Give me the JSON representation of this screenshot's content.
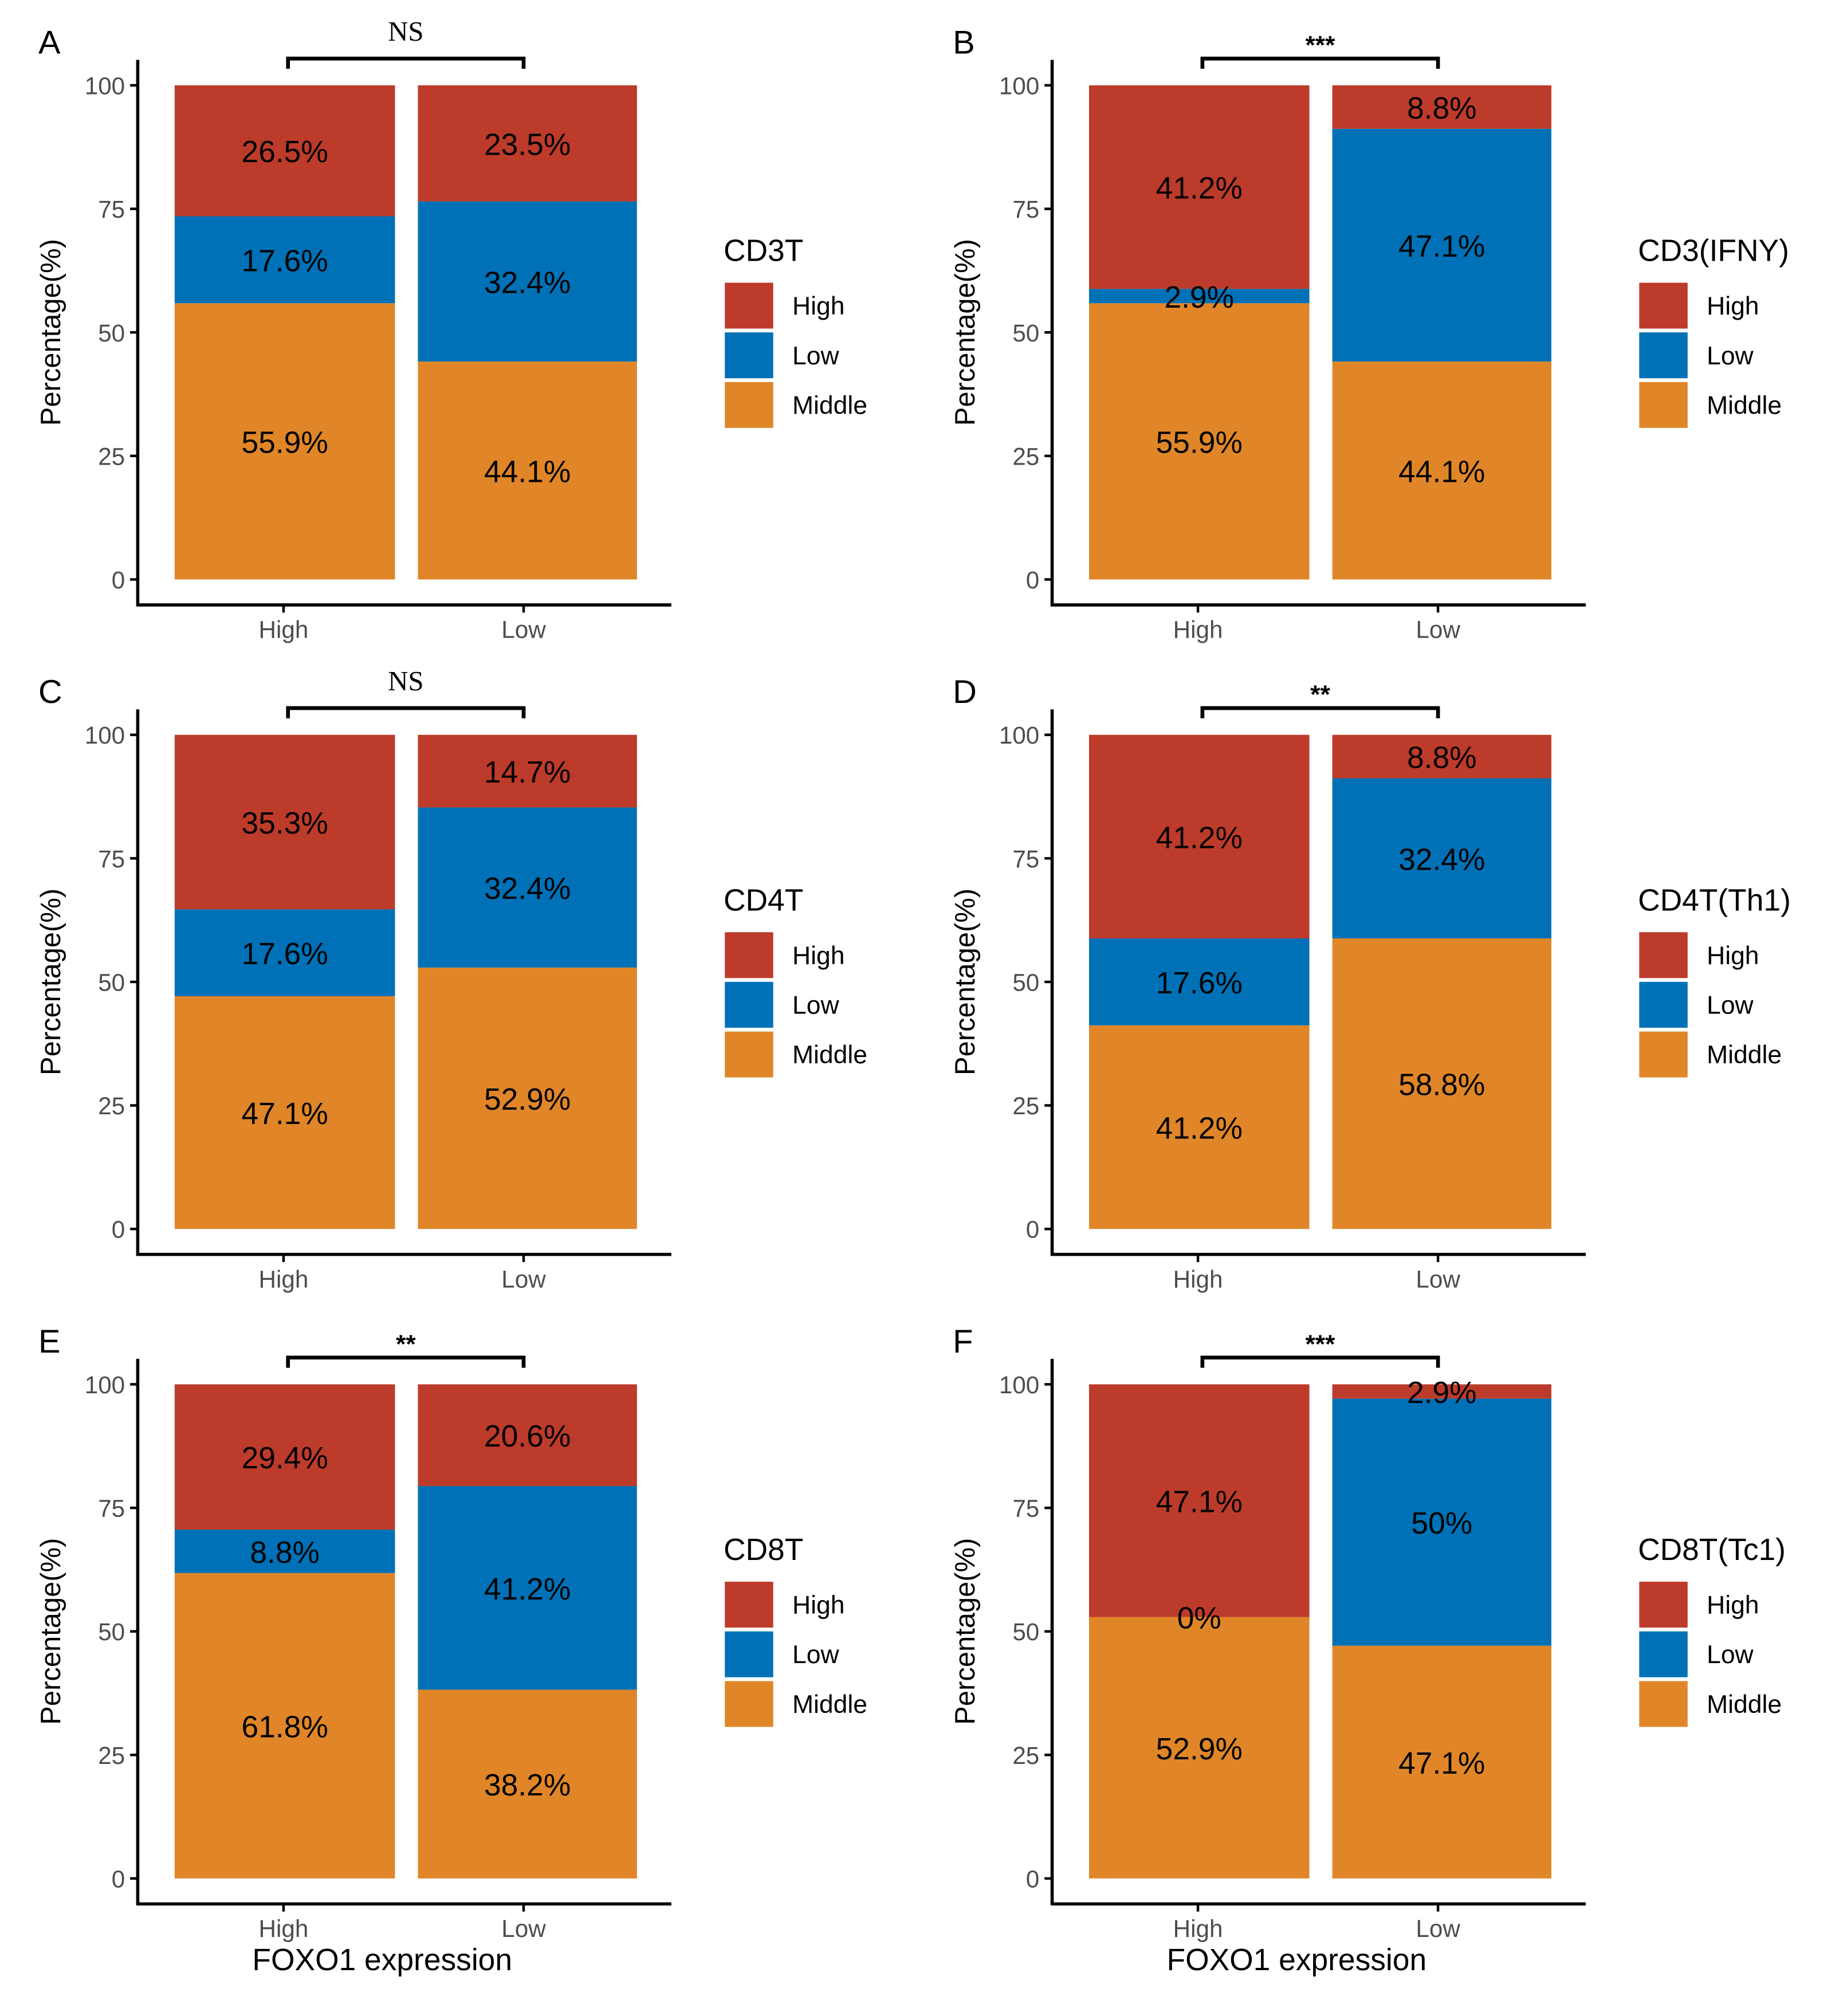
{
  "chart_data": [
    {
      "panel": "A",
      "type": "bar",
      "stacked": true,
      "significance": "NS",
      "legend_title": "CD3T",
      "categories": [
        "High",
        "Low"
      ],
      "series": [
        {
          "name": "High",
          "values": [
            26.5,
            23.5
          ],
          "labels": [
            "26.5%",
            "23.5%"
          ]
        },
        {
          "name": "Low",
          "values": [
            17.6,
            32.4
          ],
          "labels": [
            "17.6%",
            "32.4%"
          ]
        },
        {
          "name": "Middle",
          "values": [
            55.9,
            44.1
          ],
          "labels": [
            "55.9%",
            "44.1%"
          ]
        }
      ],
      "ylabel": "Percentage(%)",
      "xlabel": "",
      "ylim": [
        0,
        100
      ],
      "yticks": [
        "0",
        "25",
        "50",
        "75",
        "100"
      ]
    },
    {
      "panel": "B",
      "type": "bar",
      "stacked": true,
      "significance": "***",
      "legend_title": "CD3(IFNY)",
      "categories": [
        "High",
        "Low"
      ],
      "series": [
        {
          "name": "High",
          "values": [
            41.2,
            8.8
          ],
          "labels": [
            "41.2%",
            "8.8%"
          ]
        },
        {
          "name": "Low",
          "values": [
            2.9,
            47.1
          ],
          "labels": [
            "2.9%",
            "47.1%"
          ]
        },
        {
          "name": "Middle",
          "values": [
            55.9,
            44.1
          ],
          "labels": [
            "55.9%",
            "44.1%"
          ]
        }
      ],
      "ylabel": "Percentage(%)",
      "xlabel": "",
      "ylim": [
        0,
        100
      ],
      "yticks": [
        "0",
        "25",
        "50",
        "75",
        "100"
      ]
    },
    {
      "panel": "C",
      "type": "bar",
      "stacked": true,
      "significance": "NS",
      "legend_title": "CD4T",
      "categories": [
        "High",
        "Low"
      ],
      "series": [
        {
          "name": "High",
          "values": [
            35.3,
            14.7
          ],
          "labels": [
            "35.3%",
            "14.7%"
          ]
        },
        {
          "name": "Low",
          "values": [
            17.6,
            32.4
          ],
          "labels": [
            "17.6%",
            "32.4%"
          ]
        },
        {
          "name": "Middle",
          "values": [
            47.1,
            52.9
          ],
          "labels": [
            "47.1%",
            "52.9%"
          ]
        }
      ],
      "ylabel": "Percentage(%)",
      "xlabel": "",
      "ylim": [
        0,
        100
      ],
      "yticks": [
        "0",
        "25",
        "50",
        "75",
        "100"
      ]
    },
    {
      "panel": "D",
      "type": "bar",
      "stacked": true,
      "significance": "**",
      "legend_title": "CD4T(Th1)",
      "categories": [
        "High",
        "Low"
      ],
      "series": [
        {
          "name": "High",
          "values": [
            41.2,
            8.8
          ],
          "labels": [
            "41.2%",
            "8.8%"
          ]
        },
        {
          "name": "Low",
          "values": [
            17.6,
            32.4
          ],
          "labels": [
            "17.6%",
            "32.4%"
          ]
        },
        {
          "name": "Middle",
          "values": [
            41.2,
            58.8
          ],
          "labels": [
            "41.2%",
            "58.8%"
          ]
        }
      ],
      "ylabel": "Percentage(%)",
      "xlabel": "",
      "ylim": [
        0,
        100
      ],
      "yticks": [
        "0",
        "25",
        "50",
        "75",
        "100"
      ]
    },
    {
      "panel": "E",
      "type": "bar",
      "stacked": true,
      "significance": "**",
      "legend_title": "CD8T",
      "categories": [
        "High",
        "Low"
      ],
      "series": [
        {
          "name": "High",
          "values": [
            29.4,
            20.6
          ],
          "labels": [
            "29.4%",
            "20.6%"
          ]
        },
        {
          "name": "Low",
          "values": [
            8.8,
            41.2
          ],
          "labels": [
            "8.8%",
            "41.2%"
          ]
        },
        {
          "name": "Middle",
          "values": [
            61.8,
            38.2
          ],
          "labels": [
            "61.8%",
            "38.2%"
          ]
        }
      ],
      "ylabel": "Percentage(%)",
      "xlabel": "FOXO1 expression",
      "ylim": [
        0,
        100
      ],
      "yticks": [
        "0",
        "25",
        "50",
        "75",
        "100"
      ]
    },
    {
      "panel": "F",
      "type": "bar",
      "stacked": true,
      "significance": "***",
      "legend_title": "CD8T(Tc1)",
      "categories": [
        "High",
        "Low"
      ],
      "series": [
        {
          "name": "High",
          "values": [
            47.1,
            2.9
          ],
          "labels": [
            "47.1%",
            "2.9%"
          ]
        },
        {
          "name": "Low",
          "values": [
            0,
            50
          ],
          "labels": [
            "0%",
            "50%"
          ]
        },
        {
          "name": "Middle",
          "values": [
            52.9,
            47.1
          ],
          "labels": [
            "52.9%",
            "47.1%"
          ]
        }
      ],
      "ylabel": "Percentage(%)",
      "xlabel": "FOXO1 expression",
      "ylim": [
        0,
        100
      ],
      "yticks": [
        "0",
        "25",
        "50",
        "75",
        "100"
      ]
    }
  ],
  "colors": {
    "High": "#BD3B2A",
    "Low": "#0071B6",
    "Middle": "#E08628"
  }
}
